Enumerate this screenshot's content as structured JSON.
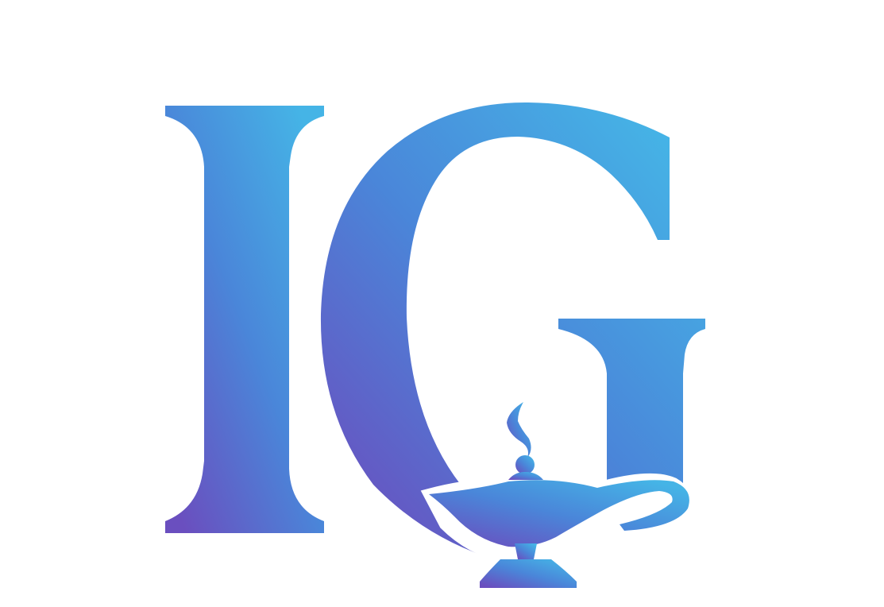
{
  "logo": {
    "monogram_text": "IG",
    "icon": "oil-lamp-icon",
    "colors": {
      "gradient_start": "#6a4fbf",
      "gradient_mid": "#4a86d9",
      "gradient_end": "#45b4e6",
      "background": "#ffffff"
    }
  }
}
